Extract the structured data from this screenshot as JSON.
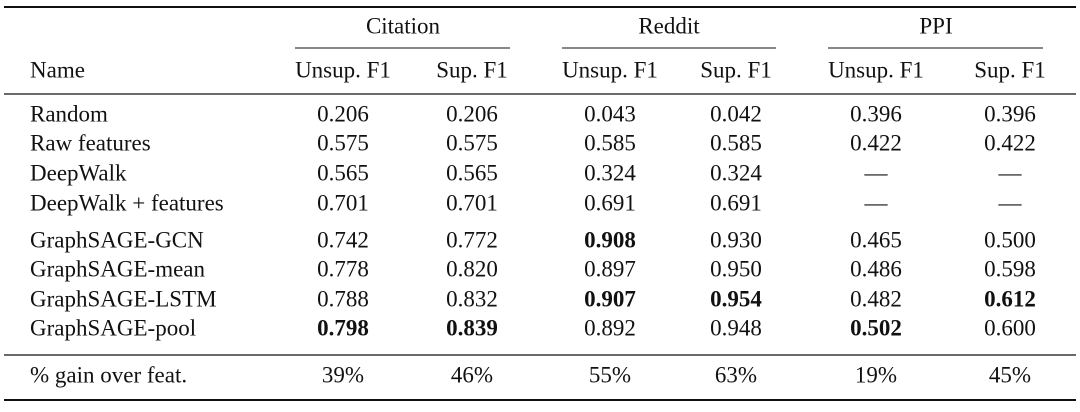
{
  "table": {
    "groups": [
      "Citation",
      "Reddit",
      "PPI"
    ],
    "header": [
      "Name",
      "Unsup. F1",
      "Sup. F1",
      "Unsup. F1",
      "Sup. F1",
      "Unsup. F1",
      "Sup. F1"
    ],
    "rows": [
      {
        "name": "Random",
        "values": [
          "0.206",
          "0.206",
          "0.043",
          "0.042",
          "0.396",
          "0.396"
        ]
      },
      {
        "name": "Raw features",
        "values": [
          "0.575",
          "0.575",
          "0.585",
          "0.585",
          "0.422",
          "0.422"
        ]
      },
      {
        "name": "DeepWalk",
        "values": [
          "0.565",
          "0.565",
          "0.324",
          "0.324",
          "—",
          "—"
        ]
      },
      {
        "name": "DeepWalk + features",
        "values": [
          "0.701",
          "0.701",
          "0.691",
          "0.691",
          "—",
          "—"
        ]
      },
      {
        "name": "GraphSAGE-GCN",
        "values": [
          "0.742",
          "0.772",
          "0.908",
          "0.930",
          "0.465",
          "0.500"
        ]
      },
      {
        "name": "GraphSAGE-mean",
        "values": [
          "0.778",
          "0.820",
          "0.897",
          "0.950",
          "0.486",
          "0.598"
        ]
      },
      {
        "name": "GraphSAGE-LSTM",
        "values": [
          "0.788",
          "0.832",
          "0.907",
          "0.954",
          "0.482",
          "0.612"
        ]
      },
      {
        "name": "GraphSAGE-pool",
        "values": [
          "0.798",
          "0.839",
          "0.892",
          "0.948",
          "0.502",
          "0.600"
        ]
      }
    ],
    "bold": [
      [
        4,
        2
      ],
      [
        6,
        2
      ],
      [
        6,
        3
      ],
      [
        6,
        5
      ],
      [
        7,
        0
      ],
      [
        7,
        1
      ],
      [
        7,
        4
      ]
    ],
    "footer": {
      "name": "% gain over feat.",
      "values": [
        "39%",
        "46%",
        "55%",
        "63%",
        "19%",
        "45%"
      ]
    }
  }
}
